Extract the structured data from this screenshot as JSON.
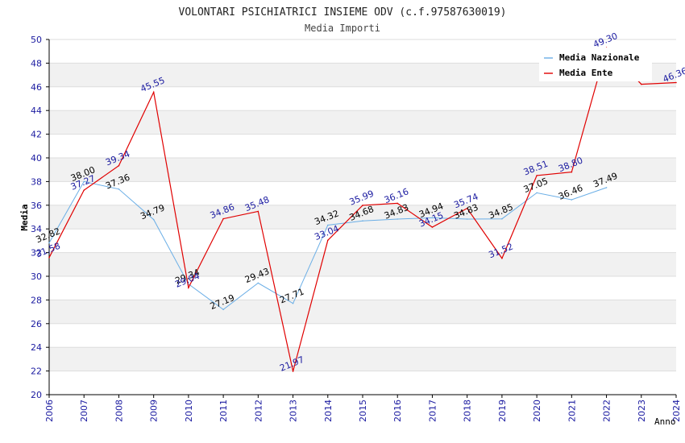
{
  "chart_data": {
    "type": "line",
    "title": "VOLONTARI PSICHIATRICI INSIEME ODV (c.f.97587630019)",
    "subtitle": "Media Importi",
    "xlabel": "Anno",
    "ylabel": "Media",
    "ylim": [
      20,
      50
    ],
    "ytick_step": 2,
    "yticks": [
      "20",
      "22",
      "24",
      "26",
      "28",
      "30",
      "32",
      "34",
      "36",
      "38",
      "40",
      "42",
      "44",
      "46",
      "48",
      "50"
    ],
    "categories": [
      "2006",
      "2007",
      "2008",
      "2009",
      "2010",
      "2011",
      "2012",
      "2013",
      "2014",
      "2015",
      "2016",
      "2017",
      "2018",
      "2019",
      "2020",
      "2021",
      "2022",
      "2023",
      "2024"
    ],
    "legend_position": "top-right",
    "series": [
      {
        "name": "Media Nazionale",
        "color": "#6aaee6",
        "label_color": "#000000",
        "values": [
          32.82,
          38.0,
          37.36,
          34.79,
          29.34,
          27.19,
          29.43,
          27.71,
          34.32,
          34.68,
          34.83,
          34.94,
          34.83,
          34.85,
          37.05,
          36.46,
          37.49,
          null,
          null
        ],
        "labels": [
          "32.82",
          "38.00",
          "37.36",
          "34.79",
          "29.34",
          "27.19",
          "29.43",
          "27.71",
          "34.32",
          "34.68",
          "34.83",
          "34.94",
          "34.83",
          "34.85",
          "37.05",
          "36.46",
          "37.49",
          "",
          ""
        ]
      },
      {
        "name": "Media Ente",
        "color": "#e00000",
        "label_color": "#1a1aa0",
        "values": [
          31.58,
          37.27,
          39.34,
          45.55,
          29.04,
          34.86,
          35.48,
          21.97,
          33.04,
          35.99,
          36.16,
          34.15,
          35.74,
          31.52,
          38.51,
          38.8,
          49.3,
          46.22,
          46.36
        ],
        "labels": [
          "31.58",
          "37.27",
          "39.34",
          "45.55",
          "29.04",
          "34.86",
          "35.48",
          "21.97",
          "33.04",
          "35.99",
          "36.16",
          "34.15",
          "35.74",
          "31.52",
          "38.51",
          "38.80",
          "49.30",
          "",
          "46.36"
        ]
      }
    ]
  }
}
